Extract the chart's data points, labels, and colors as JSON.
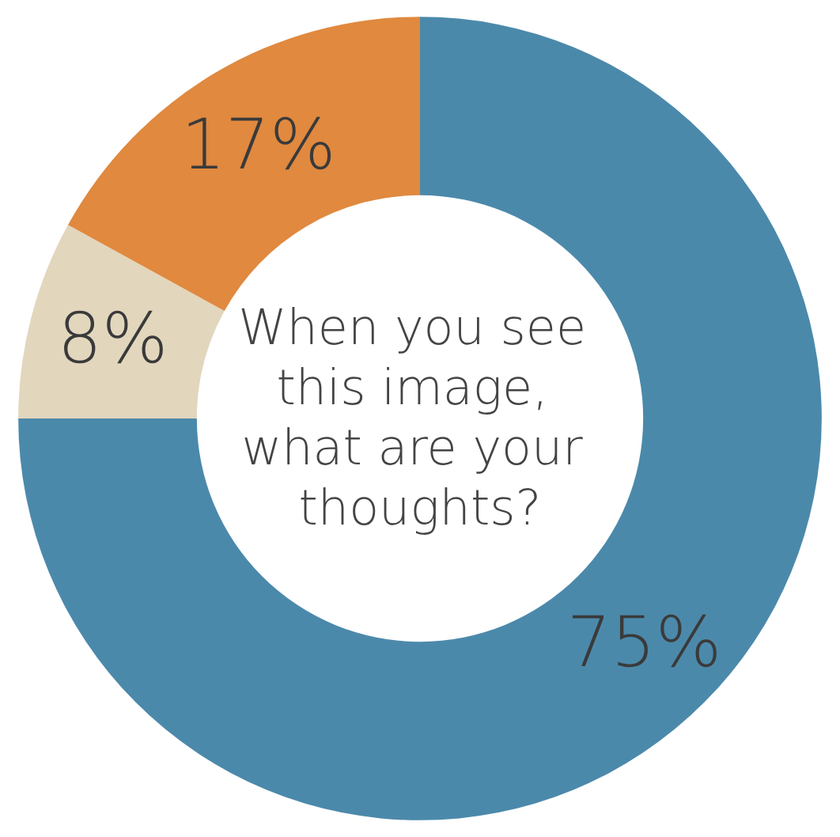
{
  "chart_data": {
    "type": "donut",
    "title": "When you see this image, what are your thoughts?",
    "categories": [
      null,
      null,
      null
    ],
    "values": [
      75,
      8,
      17
    ],
    "colors": [
      "#4b89ab",
      "#e2d6bd",
      "#e0893f"
    ],
    "value_labels": [
      "75%",
      "8%",
      "17%"
    ]
  }
}
